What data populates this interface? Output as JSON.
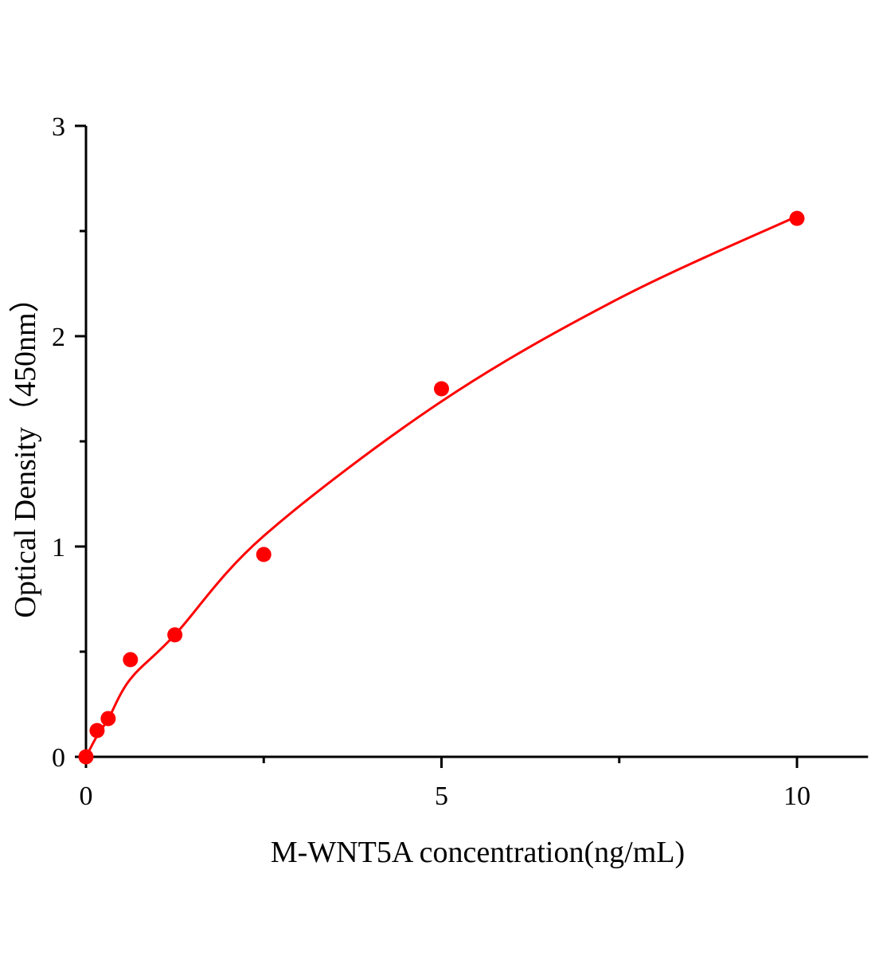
{
  "chart_data": {
    "type": "scatter",
    "title": "",
    "xlabel": "M-WNT5A concentration(ng/mL)",
    "ylabel": "Optical Density（450nm）",
    "xlim": [
      0,
      11
    ],
    "ylim": [
      0,
      3
    ],
    "x_ticks": [
      0,
      5,
      10
    ],
    "x_tick_labels": [
      "0",
      "5",
      "10"
    ],
    "x_minor_ticks": [
      2.5,
      7.5
    ],
    "y_ticks": [
      0,
      1,
      2,
      3
    ],
    "y_tick_labels": [
      "0",
      "1",
      "2",
      "3"
    ],
    "y_minor_ticks": [
      0.5,
      1.5,
      2.5
    ],
    "grid": false,
    "color": "#ff0000",
    "points": {
      "x": [
        0,
        0.156,
        0.312,
        0.625,
        1.25,
        2.5,
        5,
        10
      ],
      "y": [
        0,
        0.125,
        0.182,
        0.462,
        0.58,
        0.962,
        1.75,
        2.56
      ]
    },
    "fit_curve": {
      "x": [
        0,
        0.156,
        0.3125,
        0.625,
        1.25,
        2.5,
        5,
        7.5,
        10
      ],
      "y": [
        0,
        0.1,
        0.18,
        0.37,
        0.58,
        1.05,
        1.69,
        2.18,
        2.57
      ]
    }
  }
}
